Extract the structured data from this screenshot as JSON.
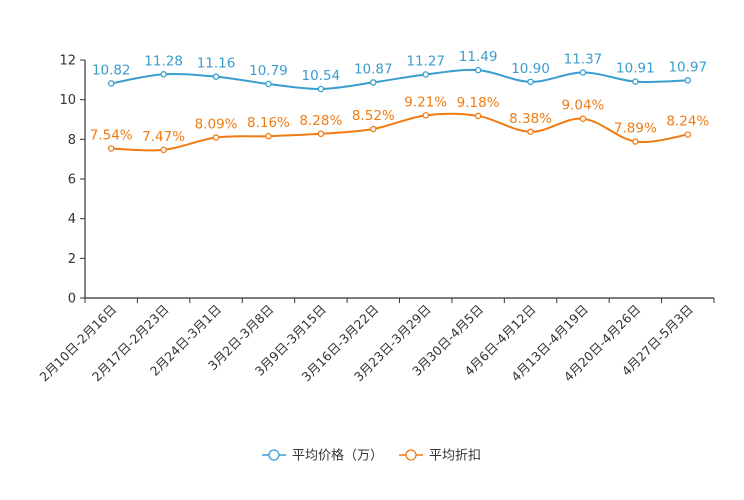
{
  "chart_data": {
    "type": "line",
    "title": "",
    "xlabel": "",
    "ylabel": "",
    "ylim": [
      0,
      12
    ],
    "yticks": [
      0,
      2,
      4,
      6,
      8,
      10,
      12
    ],
    "grid": false,
    "legend_position": "bottom",
    "categories": [
      "2月10日-2月16日",
      "2月17日-2月23日",
      "2月24日-3月1日",
      "3月2日-3月8日",
      "3月9日-3月15日",
      "3月16日-3月22日",
      "3月23日-3月29日",
      "3月30日-4月5日",
      "4月6日-4月12日",
      "4月13日-4月19日",
      "4月20日-4月26日",
      "4月27日-5月3日"
    ],
    "series": [
      {
        "name": "平均价格（万）",
        "color": "#3a9dd0",
        "values": [
          10.82,
          11.28,
          11.16,
          10.79,
          10.54,
          10.87,
          11.27,
          11.49,
          10.9,
          11.37,
          10.91,
          10.97
        ],
        "labels": [
          "10.82",
          "11.28",
          "11.16",
          "10.79",
          "10.54",
          "10.87",
          "11.27",
          "11.49",
          "10.90",
          "11.37",
          "10.91",
          "10.97"
        ]
      },
      {
        "name": "平均折扣",
        "color": "#f07b14",
        "values": [
          7.54,
          7.47,
          8.09,
          8.16,
          8.28,
          8.52,
          9.21,
          9.18,
          8.38,
          9.04,
          7.89,
          8.24
        ],
        "labels": [
          "7.54%",
          "7.47%",
          "8.09%",
          "8.16%",
          "8.28%",
          "8.52%",
          "9.21%",
          "9.18%",
          "8.38%",
          "9.04%",
          "7.89%",
          "8.24%"
        ]
      }
    ]
  }
}
